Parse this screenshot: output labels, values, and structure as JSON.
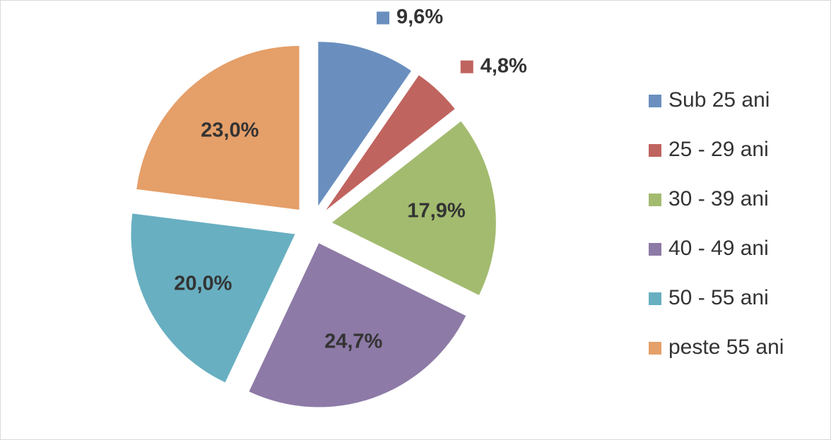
{
  "chart_data": {
    "type": "pie",
    "categories": [
      "Sub 25 ani",
      "25 - 29 ani",
      "30 - 39 ani",
      "40 - 49 ani",
      "50 - 55 ani",
      "peste 55 ani"
    ],
    "values": [
      9.6,
      4.8,
      17.9,
      24.7,
      20.0,
      23.0
    ],
    "value_labels": [
      "9,6%",
      "4,8%",
      "17,9%",
      "24,7%",
      "20,0%",
      "23,0%"
    ],
    "colors": [
      "#6a8fbf",
      "#c0645f",
      "#a3bb6f",
      "#8d7aa6",
      "#68afc1",
      "#e59f69"
    ],
    "exploded": true,
    "legend": "right"
  }
}
